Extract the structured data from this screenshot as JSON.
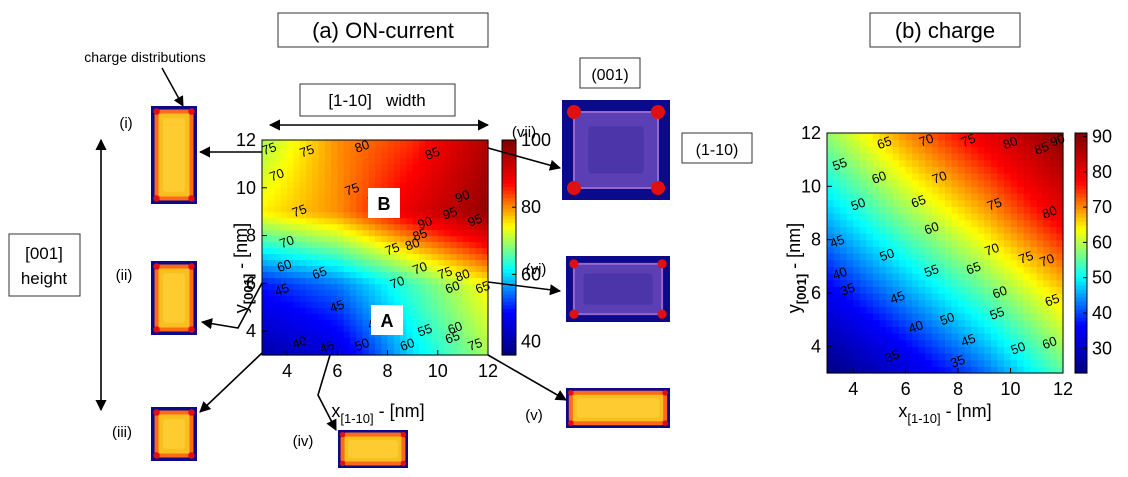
{
  "titles": {
    "a": "(a) ON-current",
    "b": "(b) charge"
  },
  "annotations": {
    "charge_distributions": "charge distributions",
    "width_label": "[1-10]   width",
    "height_line1": "[001]",
    "height_line2": "height",
    "orient_001": "(001)",
    "orient_1m10": "(1-10)",
    "region_A": "A",
    "region_B": "B",
    "insets": [
      "(i)",
      "(ii)",
      "(iii)",
      "(iv)",
      "(v)",
      "(vi)",
      "(vii)"
    ]
  },
  "colors": {
    "cmap": [
      "#000080",
      "#0000ff",
      "#00ffff",
      "#ffff00",
      "#ff0000",
      "#800000"
    ]
  },
  "chart_data": [
    {
      "type": "heatmap",
      "title": "(a) ON-current",
      "xlabel_main": "x",
      "xlabel_sub": "[1-10]",
      "xlabel_unit": " - [nm]",
      "ylabel_main": "y",
      "ylabel_sub": "[001]",
      "ylabel_unit": " - [nm]",
      "xlim": [
        3,
        12
      ],
      "ylim": [
        3,
        12
      ],
      "xticks": [
        4,
        6,
        8,
        10,
        12
      ],
      "yticks": [
        4,
        6,
        8,
        10,
        12
      ],
      "x": [
        3,
        6,
        9,
        12
      ],
      "y": [
        3,
        6,
        9,
        12
      ],
      "z": [
        [
          40,
          45,
          60,
          70
        ],
        [
          50,
          55,
          65,
          75
        ],
        [
          75,
          80,
          90,
          98
        ],
        [
          70,
          80,
          85,
          95
        ]
      ],
      "colorbar_range": [
        36,
        100
      ],
      "colorbar_ticks": [
        40,
        60,
        80,
        100
      ],
      "contour_labels": [
        {
          "t": "75",
          "x": 3.3,
          "y": 11.6
        },
        {
          "t": "70",
          "x": 3.6,
          "y": 10.5
        },
        {
          "t": "75",
          "x": 4.8,
          "y": 11.5
        },
        {
          "t": "80",
          "x": 7.0,
          "y": 11.7
        },
        {
          "t": "85",
          "x": 9.8,
          "y": 11.4
        },
        {
          "t": "75",
          "x": 6.6,
          "y": 9.9
        },
        {
          "t": "80",
          "x": 7.5,
          "y": 9.5
        },
        {
          "t": "90",
          "x": 11.0,
          "y": 9.6
        },
        {
          "t": "95",
          "x": 10.5,
          "y": 8.9
        },
        {
          "t": "95",
          "x": 11.5,
          "y": 8.6
        },
        {
          "t": "90",
          "x": 9.5,
          "y": 8.5
        },
        {
          "t": "85",
          "x": 9.3,
          "y": 8.0
        },
        {
          "t": "75",
          "x": 4.5,
          "y": 9.0
        },
        {
          "t": "70",
          "x": 4.0,
          "y": 7.7
        },
        {
          "t": "75",
          "x": 8.2,
          "y": 7.4
        },
        {
          "t": "80",
          "x": 9.0,
          "y": 7.6
        },
        {
          "t": "60",
          "x": 3.9,
          "y": 6.7
        },
        {
          "t": "65",
          "x": 5.3,
          "y": 6.4
        },
        {
          "t": "70",
          "x": 9.3,
          "y": 6.6
        },
        {
          "t": "75",
          "x": 10.3,
          "y": 6.4
        },
        {
          "t": "80",
          "x": 11.0,
          "y": 6.3
        },
        {
          "t": "45",
          "x": 3.8,
          "y": 5.7
        },
        {
          "t": "45",
          "x": 6.0,
          "y": 5.0
        },
        {
          "t": "70",
          "x": 8.4,
          "y": 6.0
        },
        {
          "t": "60",
          "x": 10.6,
          "y": 5.8
        },
        {
          "t": "65",
          "x": 11.8,
          "y": 5.8
        },
        {
          "t": "45",
          "x": 7.5,
          "y": 4.3
        },
        {
          "t": "55",
          "x": 9.5,
          "y": 4.0
        },
        {
          "t": "40",
          "x": 4.5,
          "y": 3.5
        },
        {
          "t": "45",
          "x": 5.6,
          "y": 3.3
        },
        {
          "t": "50",
          "x": 7.0,
          "y": 3.4
        },
        {
          "t": "60",
          "x": 8.8,
          "y": 3.4
        },
        {
          "t": "65",
          "x": 10.6,
          "y": 3.7
        },
        {
          "t": "60",
          "x": 10.7,
          "y": 4.1
        },
        {
          "t": "75",
          "x": 11.5,
          "y": 3.4
        }
      ]
    },
    {
      "type": "heatmap",
      "title": "(b) charge",
      "xlabel_main": "x",
      "xlabel_sub": "[1-10]",
      "xlabel_unit": " - [nm]",
      "ylabel_main": "y",
      "ylabel_sub": "[001]",
      "ylabel_unit": " - [nm]",
      "xlim": [
        3,
        12
      ],
      "ylim": [
        3,
        12
      ],
      "xticks": [
        4,
        6,
        8,
        10,
        12
      ],
      "yticks": [
        4,
        6,
        8,
        10,
        12
      ],
      "x": [
        3,
        6,
        9,
        12
      ],
      "y": [
        3,
        6,
        9,
        12
      ],
      "z": [
        [
          23,
          32,
          42,
          55
        ],
        [
          35,
          45,
          55,
          66
        ],
        [
          47,
          58,
          68,
          80
        ],
        [
          58,
          70,
          80,
          90
        ]
      ],
      "colorbar_range": [
        23,
        91
      ],
      "colorbar_ticks": [
        30,
        40,
        50,
        60,
        70,
        80,
        90
      ],
      "contour_labels": [
        {
          "t": "65",
          "x": 5.2,
          "y": 11.6
        },
        {
          "t": "70",
          "x": 6.8,
          "y": 11.7
        },
        {
          "t": "75",
          "x": 8.4,
          "y": 11.7
        },
        {
          "t": "80",
          "x": 10.0,
          "y": 11.6
        },
        {
          "t": "85",
          "x": 11.2,
          "y": 11.4
        },
        {
          "t": "90",
          "x": 11.8,
          "y": 11.7
        },
        {
          "t": "55",
          "x": 3.5,
          "y": 10.8
        },
        {
          "t": "60",
          "x": 5.0,
          "y": 10.3
        },
        {
          "t": "70",
          "x": 7.3,
          "y": 10.3
        },
        {
          "t": "65",
          "x": 6.5,
          "y": 9.4
        },
        {
          "t": "75",
          "x": 9.4,
          "y": 9.3
        },
        {
          "t": "80",
          "x": 11.5,
          "y": 9.0
        },
        {
          "t": "50",
          "x": 4.2,
          "y": 9.3
        },
        {
          "t": "60",
          "x": 7.0,
          "y": 8.4
        },
        {
          "t": "70",
          "x": 9.3,
          "y": 7.6
        },
        {
          "t": "75",
          "x": 10.6,
          "y": 7.3
        },
        {
          "t": "70",
          "x": 11.4,
          "y": 7.2
        },
        {
          "t": "45",
          "x": 3.4,
          "y": 7.9
        },
        {
          "t": "50",
          "x": 5.3,
          "y": 7.4
        },
        {
          "t": "55",
          "x": 7.0,
          "y": 6.8
        },
        {
          "t": "65",
          "x": 8.6,
          "y": 6.9
        },
        {
          "t": "60",
          "x": 9.6,
          "y": 6.0
        },
        {
          "t": "65",
          "x": 11.6,
          "y": 5.7
        },
        {
          "t": "40",
          "x": 3.5,
          "y": 6.7
        },
        {
          "t": "35",
          "x": 3.8,
          "y": 6.1
        },
        {
          "t": "45",
          "x": 5.7,
          "y": 5.8
        },
        {
          "t": "55",
          "x": 9.5,
          "y": 5.2
        },
        {
          "t": "50",
          "x": 7.6,
          "y": 5.0
        },
        {
          "t": "40",
          "x": 6.4,
          "y": 4.7
        },
        {
          "t": "45",
          "x": 8.4,
          "y": 4.2
        },
        {
          "t": "50",
          "x": 10.3,
          "y": 3.9
        },
        {
          "t": "60",
          "x": 11.5,
          "y": 4.1
        },
        {
          "t": "35",
          "x": 5.5,
          "y": 3.6
        },
        {
          "t": "35",
          "x": 8.0,
          "y": 3.4
        }
      ]
    }
  ]
}
